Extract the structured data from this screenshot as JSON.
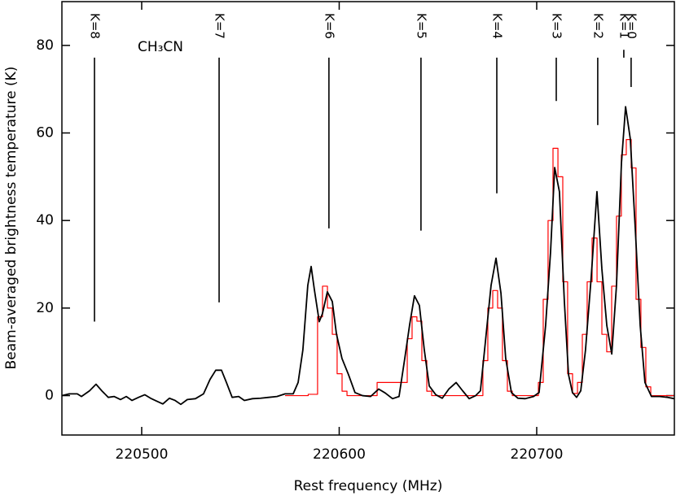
{
  "chart_data": {
    "type": "line",
    "xlabel": "Rest frequency (MHz)",
    "ylabel": "Beam-averaged brightness temperature (K)",
    "xlim": [
      220459.6,
      220769.7
    ],
    "ylim": [
      -9,
      90
    ],
    "xticks": [
      220500,
      220600,
      220700
    ],
    "yticks": [
      0,
      20,
      40,
      60,
      80
    ],
    "series": [
      {
        "color": "#000000",
        "step": false,
        "x": [
          220459.6,
          220463.3,
          220467.4,
          220469.5,
          220473.6,
          220476.9,
          220479.8,
          220483.1,
          220486.0,
          220489.3,
          220492.2,
          220495.1,
          220498.4,
          220501.6,
          220504.5,
          220507.8,
          220510.7,
          220514.0,
          220516.9,
          220519.8,
          220523.1,
          220527.2,
          220531.3,
          220534.6,
          220537.5,
          220540.4,
          220542.9,
          220545.8,
          220549.1,
          220552.0,
          220556.1,
          220560.2,
          220564.3,
          220568.5,
          220572.6,
          220576.7,
          220579.2,
          220581.6,
          220584.1,
          220585.8,
          220587.4,
          220589.9,
          220591.5,
          220594.0,
          220596.5,
          220598.6,
          220601.4,
          220604.7,
          220608.0,
          220611.8,
          220615.9,
          220620.0,
          220623.3,
          220627.0,
          220630.3,
          220633.2,
          220635.7,
          220638.1,
          220640.6,
          220643.1,
          220645.6,
          220648.9,
          220652.2,
          220655.5,
          220659.2,
          220662.5,
          220665.8,
          220669.1,
          220671.5,
          220674.0,
          220676.9,
          220679.4,
          220681.9,
          220684.3,
          220687.2,
          220690.5,
          220694.2,
          220698.4,
          220701.2,
          220704.5,
          220707.0,
          220709.1,
          220711.5,
          220714.0,
          220716.1,
          220718.1,
          220720.2,
          220722.3,
          220724.7,
          220727.6,
          220730.5,
          220733.0,
          220735.5,
          220738.0,
          220740.4,
          220742.9,
          220745.0,
          220747.4,
          220749.9,
          220752.4,
          220754.8,
          220758.1,
          220762.3,
          220766.4,
          220769.7
        ],
        "values": [
          0,
          0.4,
          0.4,
          -0.2,
          1.1,
          2.6,
          1.1,
          -0.4,
          -0.2,
          -0.9,
          -0.2,
          -1.1,
          -0.4,
          0.2,
          -0.6,
          -1.3,
          -1.9,
          -0.6,
          -1.1,
          -2,
          -0.9,
          -0.7,
          0.4,
          3.7,
          5.8,
          5.8,
          3,
          -0.4,
          -0.2,
          -1.1,
          -0.7,
          -0.6,
          -0.4,
          -0.2,
          0.4,
          0.4,
          3,
          10.4,
          25.2,
          29.5,
          24.3,
          16.9,
          18.7,
          23.7,
          21.5,
          14.1,
          8.5,
          4.8,
          0.7,
          0,
          -0.2,
          1.5,
          0.6,
          -0.7,
          -0.2,
          8.5,
          16.3,
          22.8,
          20.6,
          10.4,
          2.2,
          0.2,
          -0.6,
          1.5,
          3,
          1.1,
          -0.7,
          0,
          1.1,
          12.2,
          25.2,
          31.4,
          23.4,
          8.5,
          0.7,
          -0.6,
          -0.7,
          -0.2,
          0.7,
          16,
          32.7,
          52.1,
          46.6,
          21.5,
          4.8,
          0.7,
          -0.4,
          1.1,
          10.4,
          27.1,
          46.6,
          28.9,
          16,
          9.5,
          25.2,
          53.1,
          66,
          58.6,
          38.2,
          16,
          3,
          -0.2,
          -0.2,
          -0.4,
          -0.7
        ]
      },
      {
        "color": "#ff0000",
        "step": true,
        "x": [
          220572.6,
          220580.8,
          220587.8,
          220590.3,
          220592.8,
          220595.3,
          220597.7,
          220600.2,
          220602.7,
          220605.2,
          220633.2,
          220635.7,
          220638.1,
          220640.6,
          220643.1,
          220645.6,
          220648.0,
          220671.5,
          220674.0,
          220676.5,
          220679.0,
          220681.4,
          220683.9,
          220686.4,
          220688.9,
          220699.6,
          220702.1,
          220704.5,
          220707.0,
          220709.5,
          220712.0,
          220714.4,
          220716.9,
          220719.4,
          220721.9,
          220724.3,
          220726.8,
          220729.3,
          220731.8,
          220734.2,
          220736.7,
          220739.2,
          220741.6,
          220744.1,
          220746.6,
          220749.1,
          220751.5,
          220754.0,
          220756.5,
          220759.0,
          220769.7
        ],
        "values": [
          0,
          0,
          0.3,
          18,
          25,
          20,
          14,
          5,
          1,
          0,
          3,
          13,
          18,
          17,
          8,
          1,
          0,
          0,
          8,
          20,
          24,
          20,
          8,
          1,
          0,
          0,
          3,
          22,
          40,
          56.5,
          50,
          26,
          5,
          0.5,
          3,
          14,
          26,
          36,
          26,
          14,
          10,
          25,
          41,
          55,
          58.5,
          52,
          22,
          11,
          2,
          0,
          0
        ]
      }
    ],
    "annotations": [
      {
        "label": "K=8",
        "x": 220476.1,
        "line": [
          16.9,
          77.2
        ]
      },
      {
        "label": "K=7",
        "x": 220539.2,
        "line": [
          21.3,
          77.2
        ]
      },
      {
        "label": "K=6",
        "x": 220594.8,
        "line": [
          38.2,
          77.2
        ]
      },
      {
        "label": "K=5",
        "x": 220641.4,
        "line": [
          37.7,
          77.2
        ]
      },
      {
        "label": "K=4",
        "x": 220679.8,
        "line": [
          46.2,
          77.2
        ]
      },
      {
        "label": "K=3",
        "x": 220709.9,
        "line": [
          67.3,
          77.2
        ]
      },
      {
        "label": "K=2",
        "x": 220730.9,
        "line": [
          61.8,
          77.2
        ]
      },
      {
        "label": "K=1",
        "x": 220744.1,
        "line": [
          77.2,
          79
        ]
      },
      {
        "label": "K=0",
        "x": 220747.8,
        "line": [
          70.5,
          77.2
        ]
      }
    ],
    "species": {
      "text": "CH₃CN",
      "x": 220509.5,
      "y": 79.6
    }
  }
}
